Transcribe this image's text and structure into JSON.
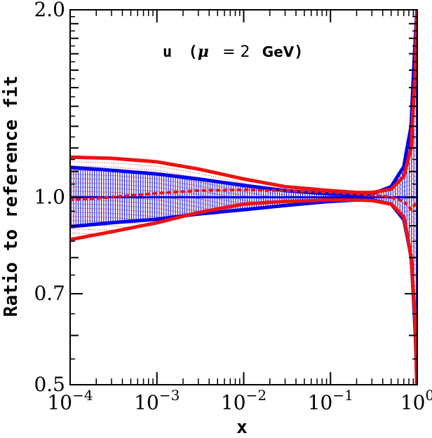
{
  "chart_data": {
    "type": "line",
    "title": "",
    "annotation": {
      "flavor": "u",
      "scale_prefix": "(",
      "scale_symbol": "μ",
      "scale_eq": "= 2",
      "scale_unit": "GeV",
      "scale_suffix": ")"
    },
    "xlabel": "x",
    "ylabel": "Ratio to reference fit",
    "x_scale": "log",
    "y_scale": "log",
    "xlim": [
      0.0001,
      1.0
    ],
    "ylim": [
      0.5,
      2.0
    ],
    "x_ticks": [
      {
        "base": "10",
        "exp": "−4",
        "value": 0.0001
      },
      {
        "base": "10",
        "exp": "−3",
        "value": 0.001
      },
      {
        "base": "10",
        "exp": "−2",
        "value": 0.01
      },
      {
        "base": "10",
        "exp": "−1",
        "value": 0.1
      },
      {
        "base": "10",
        "exp": "0",
        "value": 1.0
      }
    ],
    "y_ticks": [
      {
        "label": "0.5",
        "value": 0.5
      },
      {
        "label": "0.7",
        "value": 0.7
      },
      {
        "label": "1.0",
        "value": 1.0
      },
      {
        "label": "2.0",
        "value": 2.0
      }
    ],
    "series": [
      {
        "role": "reference_band_upper",
        "color": "#0000ee",
        "style": "solid",
        "x": [
          0.0001,
          0.0003,
          0.001,
          0.003,
          0.01,
          0.03,
          0.1,
          0.2,
          0.3,
          0.5,
          0.7,
          0.85,
          0.95,
          0.99
        ],
        "y": [
          1.117,
          1.105,
          1.09,
          1.07,
          1.045,
          1.025,
          1.012,
          1.01,
          1.012,
          1.04,
          1.12,
          1.3,
          1.8,
          2.0
        ]
      },
      {
        "role": "reference_band_lower",
        "color": "#0000ee",
        "style": "solid",
        "x": [
          0.0001,
          0.0003,
          0.001,
          0.003,
          0.01,
          0.03,
          0.1,
          0.2,
          0.3,
          0.5,
          0.7,
          0.85,
          0.95,
          0.99
        ],
        "y": [
          0.897,
          0.91,
          0.922,
          0.94,
          0.955,
          0.97,
          0.985,
          0.99,
          0.99,
          0.975,
          0.92,
          0.8,
          0.6,
          0.5
        ]
      },
      {
        "role": "central",
        "color": "#0000ee",
        "style": "solid",
        "x": [
          0.0001,
          1.0
        ],
        "y": [
          1.0,
          1.0
        ]
      },
      {
        "role": "alternative_band_upper",
        "color": "#ee1111",
        "style": "solid",
        "x": [
          0.0001,
          0.0003,
          0.001,
          0.003,
          0.01,
          0.03,
          0.1,
          0.2,
          0.3,
          0.5,
          0.7,
          0.85,
          0.95,
          0.99
        ],
        "y": [
          1.16,
          1.155,
          1.14,
          1.11,
          1.07,
          1.04,
          1.025,
          1.018,
          1.018,
          1.03,
          1.08,
          1.2,
          1.6,
          2.0
        ]
      },
      {
        "role": "alternative_band_lower",
        "color": "#ee1111",
        "style": "solid",
        "x": [
          0.0001,
          0.0003,
          0.001,
          0.003,
          0.01,
          0.03,
          0.1,
          0.2,
          0.3,
          0.5,
          0.7,
          0.85,
          0.95,
          0.985
        ],
        "y": [
          0.855,
          0.88,
          0.91,
          0.945,
          0.975,
          0.985,
          0.99,
          0.99,
          0.988,
          0.975,
          0.93,
          0.8,
          0.62,
          0.5
        ]
      },
      {
        "role": "alternative_central",
        "color": "#ee1111",
        "style": "dotted",
        "x": [
          0.0001,
          0.0003,
          0.001,
          0.003,
          0.01,
          0.03,
          0.1,
          0.2,
          0.3,
          0.5,
          0.7,
          0.85,
          0.95,
          0.99
        ],
        "y": [
          0.99,
          1.0,
          1.015,
          1.025,
          1.028,
          1.025,
          1.018,
          1.012,
          1.008,
          1.0,
          0.985,
          0.955,
          0.975,
          0.99
        ]
      }
    ],
    "grid": false,
    "legend": "none"
  }
}
